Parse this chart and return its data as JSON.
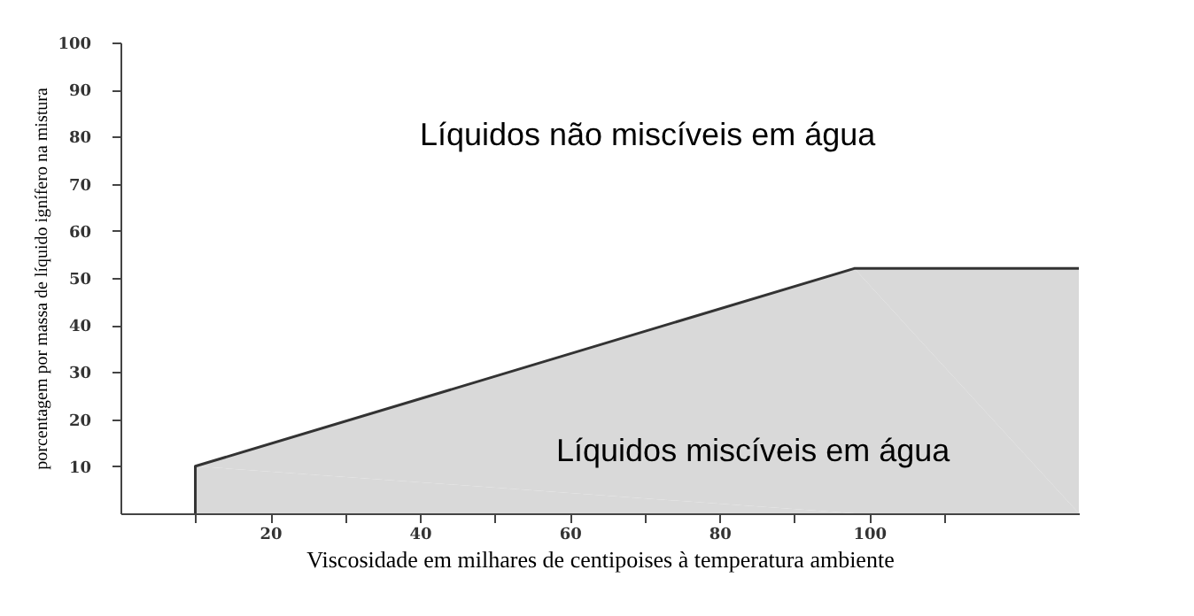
{
  "chart_data": {
    "type": "area",
    "xlabel": "Viscosidade em milhares de centipoises à temperatura ambiente",
    "ylabel": "porcentagem por massa de líquido ignífero na mistura",
    "x": [
      10,
      10,
      98,
      128
    ],
    "series": [
      {
        "color": "#d9d9d9",
        "values": [
          0,
          10,
          52,
          52
        ]
      }
    ],
    "xlim": [
      0,
      128
    ],
    "xticks": [
      {
        "value": 10,
        "label": null
      },
      20,
      {
        "value": 30,
        "label": null
      },
      40,
      {
        "value": 50,
        "label": null
      },
      60,
      {
        "value": 70,
        "label": null
      },
      80,
      {
        "value": 90,
        "label": null
      },
      100,
      {
        "value": 110,
        "label": null
      }
    ],
    "ylim": [
      0,
      100
    ],
    "yticks": [
      10,
      20,
      30,
      40,
      50,
      60,
      70,
      80,
      90,
      100
    ],
    "grid": false,
    "annotations": [
      "Líquidos não miscíveis em água",
      "Líquidos miscíveis em água"
    ]
  }
}
